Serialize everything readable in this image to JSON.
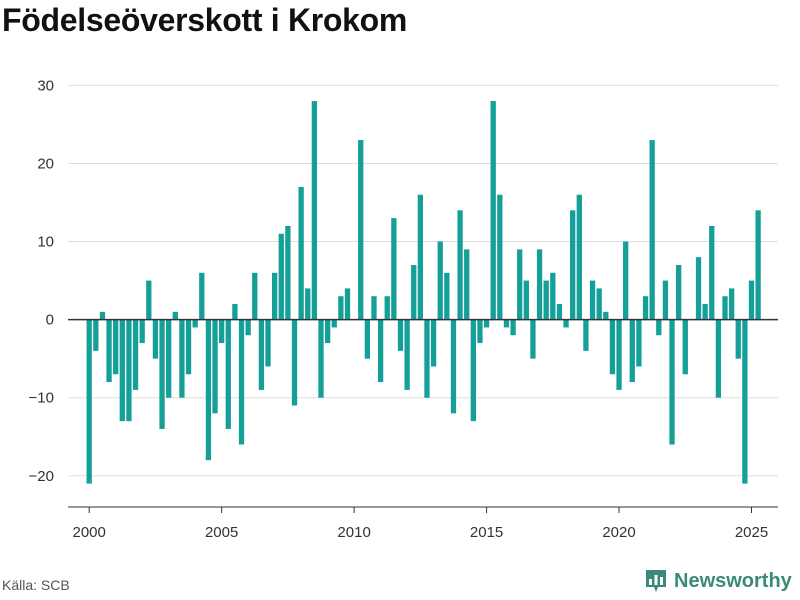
{
  "title": "Födelseöverskott i Krokom",
  "source": "Källa: SCB",
  "brand": {
    "name": "Newsworthy",
    "icon": "newsworthy-logo-icon",
    "color": "#3a8a7a"
  },
  "colors": {
    "bar": "#14a098",
    "grid": "#dddddd",
    "zero_line": "#333333"
  },
  "chart_data": {
    "type": "bar",
    "title": "Födelseöverskott i Krokom",
    "xlabel": "",
    "ylabel": "",
    "grid": true,
    "xlim": [
      1999.2,
      2026.0
    ],
    "ylim": [
      -24,
      33
    ],
    "y_ticks": [
      30,
      20,
      10,
      0,
      -10,
      -20
    ],
    "y_tick_labels": [
      "30",
      "20",
      "10",
      "0",
      "−10",
      "−20"
    ],
    "x_ticks": [
      2000,
      2005,
      2010,
      2015,
      2020,
      2025
    ],
    "x_tick_labels": [
      "2000",
      "2005",
      "2010",
      "2015",
      "2020",
      "2025"
    ],
    "period_start": 2000,
    "periods_per_year": 4,
    "values": [
      -21,
      -4,
      1,
      -8,
      -7,
      -13,
      -13,
      -9,
      -3,
      5,
      -5,
      -14,
      -10,
      1,
      -10,
      -7,
      -1,
      6,
      -18,
      -12,
      -3,
      -14,
      2,
      -16,
      -2,
      6,
      -9,
      -6,
      6,
      11,
      12,
      -11,
      17,
      4,
      28,
      -10,
      -3,
      -1,
      3,
      4,
      0,
      23,
      -5,
      3,
      -8,
      3,
      13,
      -4,
      -9,
      7,
      16,
      -10,
      -6,
      10,
      6,
      -12,
      14,
      9,
      -13,
      -3,
      -1,
      28,
      16,
      -1,
      -2,
      9,
      5,
      -5,
      9,
      5,
      6,
      2,
      -1,
      14,
      16,
      -4,
      5,
      4,
      1,
      -7,
      -9,
      10,
      -8,
      -6,
      3,
      23,
      -2,
      5,
      -16,
      7,
      -7,
      0,
      8,
      2,
      12,
      -10,
      3,
      4,
      -5,
      -21,
      5,
      14
    ]
  }
}
